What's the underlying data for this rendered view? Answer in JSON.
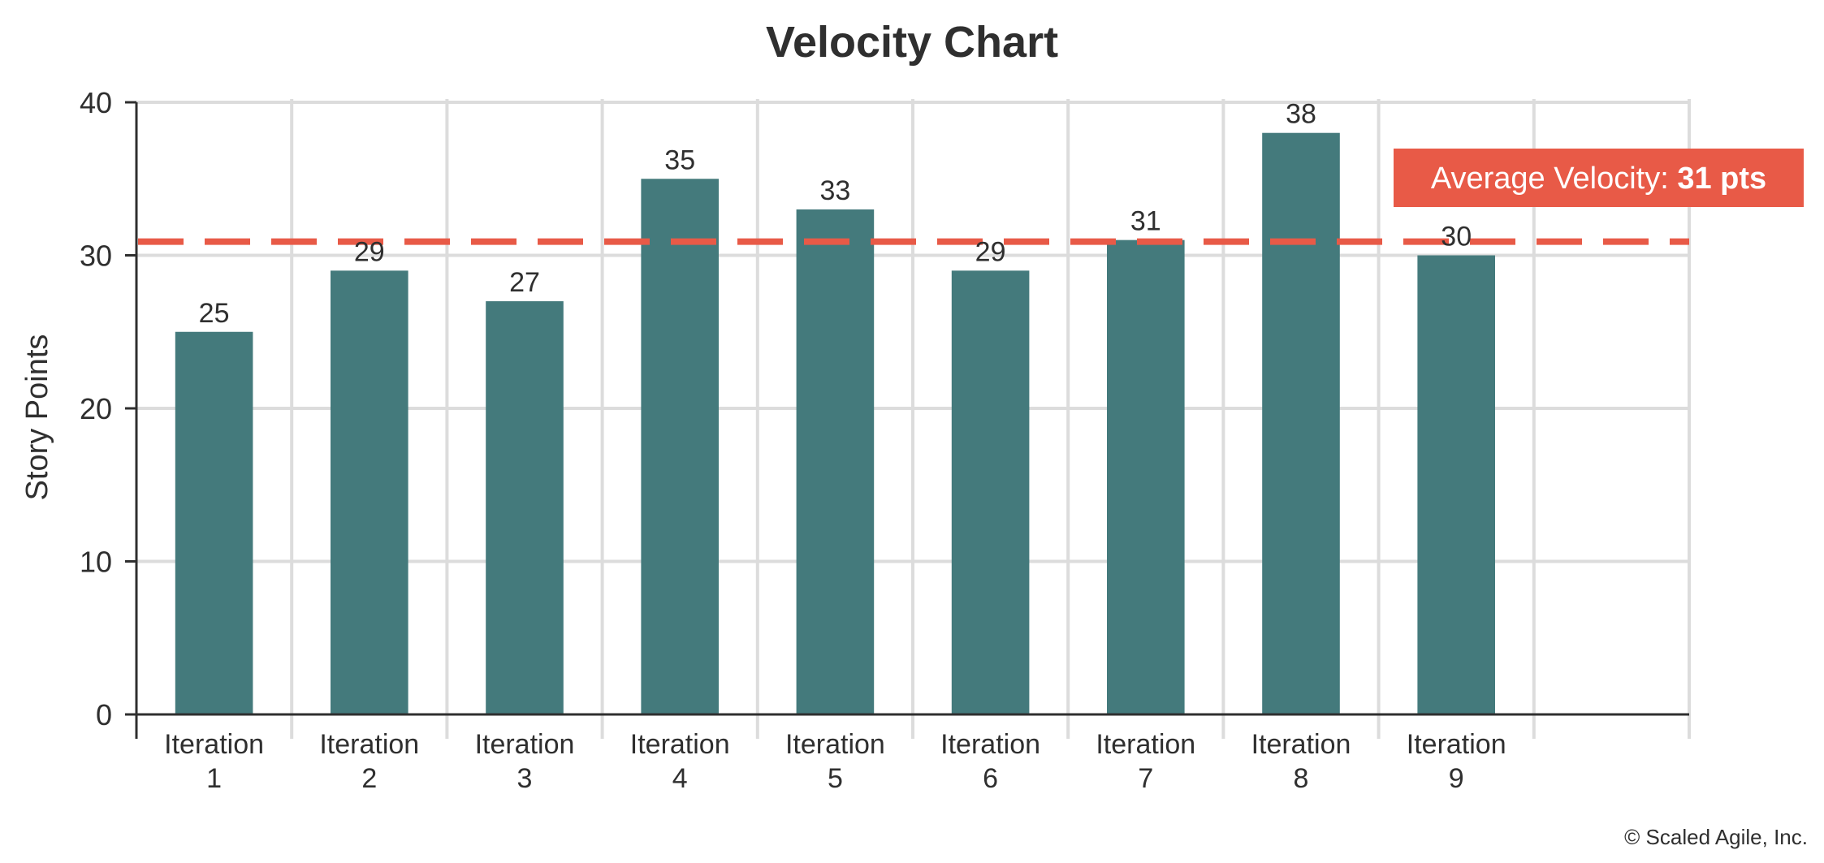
{
  "chart_data": {
    "type": "bar",
    "title": "Velocity Chart",
    "xlabel": "",
    "ylabel": "Story Points",
    "categories": [
      [
        "Iteration",
        "1"
      ],
      [
        "Iteration",
        "2"
      ],
      [
        "Iteration",
        "3"
      ],
      [
        "Iteration",
        "4"
      ],
      [
        "Iteration",
        "5"
      ],
      [
        "Iteration",
        "6"
      ],
      [
        "Iteration",
        "7"
      ],
      [
        "Iteration",
        "8"
      ],
      [
        "Iteration",
        "9"
      ]
    ],
    "values": [
      25,
      29,
      27,
      35,
      33,
      29,
      31,
      38,
      30
    ],
    "data_labels": [
      "25",
      "29",
      "27",
      "35",
      "33",
      "29",
      "31",
      "38",
      "30"
    ],
    "ylim": [
      0,
      40
    ],
    "yticks": [
      0,
      10,
      20,
      30,
      40
    ],
    "empty_slots_after_last": 1,
    "grid": true,
    "reference_line": {
      "value": 31,
      "style": "dashed",
      "label_prefix": "Average Velocity:",
      "label_value": "31 pts"
    },
    "colors": {
      "bar": "#447a7c",
      "reference": "#e85a47",
      "grid": "#dcdcdc",
      "axis": "#2f2f2f"
    }
  },
  "footer": {
    "copyright": "© Scaled Agile, Inc."
  }
}
